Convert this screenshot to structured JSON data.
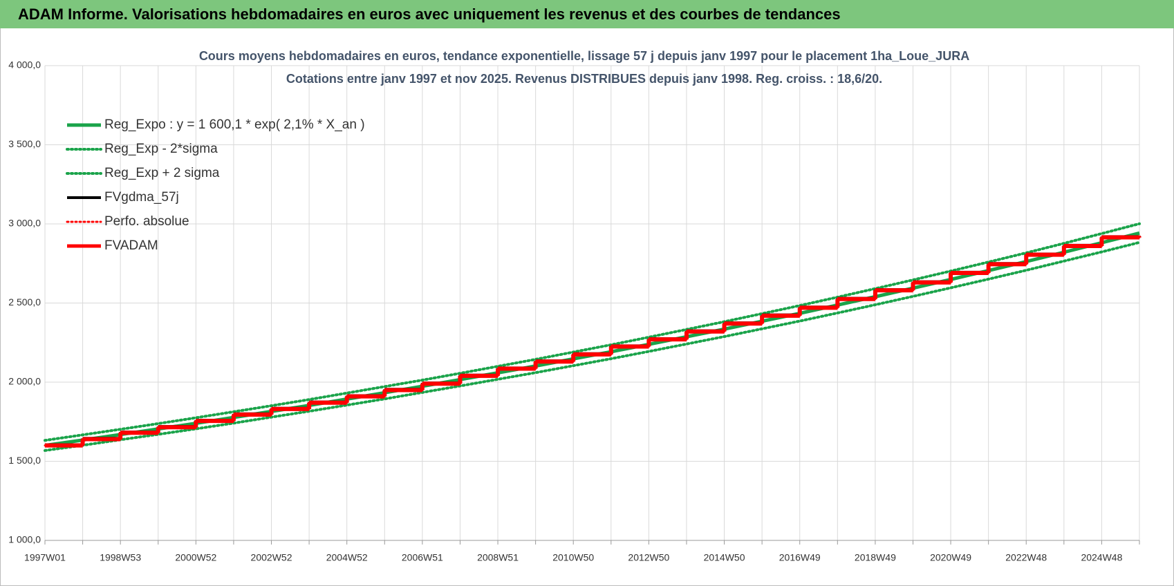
{
  "header": {
    "title": "ADAM Informe. Valorisations hebdomadaires en euros avec uniquement les revenus et des courbes de tendances"
  },
  "chart_data": {
    "type": "line",
    "title": "Cours moyens  hebdomadaires en euros, tendance exponentielle, lissage 57 j depuis janv 1997 pour le placement 1ha_Loue_JURA",
    "subtitle": "Cotations entre janv 1997 et nov 2025. Revenus  DISTRIBUES depuis janv 1998.  Reg. croiss. : 18,6/20.",
    "categories": [
      "1997W01",
      null,
      "1998W53",
      null,
      "2000W52",
      null,
      "2002W52",
      null,
      "2004W52",
      null,
      "2006W51",
      null,
      "2008W51",
      null,
      "2010W50",
      null,
      "2012W50",
      null,
      "2014W50",
      null,
      "2016W49",
      null,
      "2018W49",
      null,
      "2020W49",
      null,
      "2022W48",
      null,
      "2024W48",
      null
    ],
    "ylim": [
      1000,
      4000
    ],
    "yticks": [
      {
        "value": 1000,
        "label": "1 000,0"
      },
      {
        "value": 1500,
        "label": "1 500,0"
      },
      {
        "value": 2000,
        "label": "2 000,0"
      },
      {
        "value": 2500,
        "label": "2 500,0"
      },
      {
        "value": 3000,
        "label": "3 000,0"
      },
      {
        "value": 3500,
        "label": "3 500,0"
      },
      {
        "value": 4000,
        "label": "4 000,0"
      }
    ],
    "grid": true,
    "legend": "upper-left",
    "series": [
      {
        "name": "Reg_Expo : y = 1 600,1 * exp( 2,1% *  X_an )",
        "color": "#1aa34a",
        "dash": "solid",
        "width": 5,
        "step": false,
        "values": [
          1600,
          1634,
          1669,
          1704,
          1740,
          1777,
          1815,
          1853,
          1893,
          1933,
          1974,
          2016,
          2059,
          2102,
          2147,
          2192,
          2239,
          2287,
          2335,
          2385,
          2435,
          2487,
          2540,
          2594,
          2649,
          2705,
          2762,
          2821,
          2881,
          2942
        ]
      },
      {
        "name": "Reg_Exp - 2*sigma",
        "color": "#1aa34a",
        "dash": "dotted",
        "width": 4,
        "step": false,
        "values": [
          1568,
          1601,
          1636,
          1670,
          1705,
          1741,
          1779,
          1816,
          1855,
          1894,
          1935,
          1976,
          2018,
          2060,
          2104,
          2148,
          2194,
          2241,
          2288,
          2337,
          2386,
          2437,
          2489,
          2542,
          2596,
          2651,
          2707,
          2765,
          2823,
          2883
        ]
      },
      {
        "name": "Reg_Exp + 2 sigma",
        "color": "#1aa34a",
        "dash": "dotted",
        "width": 4,
        "step": false,
        "values": [
          1632,
          1667,
          1702,
          1738,
          1775,
          1813,
          1851,
          1890,
          1931,
          1972,
          2013,
          2056,
          2100,
          2144,
          2190,
          2236,
          2284,
          2333,
          2382,
          2433,
          2484,
          2537,
          2591,
          2646,
          2702,
          2759,
          2817,
          2877,
          2939,
          3001
        ]
      },
      {
        "name": "FVgdma_57j",
        "color": "#000000",
        "dash": "solid",
        "width": 4,
        "step": true,
        "values": [
          1605,
          1645,
          1685,
          1720,
          1760,
          1800,
          1835,
          1875,
          1915,
          1955,
          1995,
          2045,
          2090,
          2135,
          2180,
          2230,
          2275,
          2325,
          2375,
          2425,
          2475,
          2530,
          2585,
          2635,
          2695,
          2750,
          2810,
          2865,
          2920,
          2925
        ]
      },
      {
        "name": "Perfo. absolue",
        "color": "#ff0000",
        "dash": "dotted",
        "width": 3,
        "step": true,
        "values": [
          1600,
          1640,
          1680,
          1715,
          1755,
          1795,
          1830,
          1870,
          1910,
          1950,
          1990,
          2040,
          2085,
          2130,
          2175,
          2225,
          2270,
          2320,
          2370,
          2420,
          2470,
          2525,
          2580,
          2630,
          2690,
          2745,
          2805,
          2860,
          2915,
          2920
        ]
      },
      {
        "name": "FVADAM",
        "color": "#ff0000",
        "dash": "solid",
        "width": 6,
        "step": true,
        "values": [
          1600,
          1640,
          1680,
          1715,
          1755,
          1795,
          1830,
          1870,
          1910,
          1950,
          1990,
          2040,
          2085,
          2130,
          2175,
          2225,
          2270,
          2320,
          2370,
          2420,
          2470,
          2525,
          2580,
          2630,
          2690,
          2745,
          2805,
          2860,
          2915,
          2920
        ]
      }
    ]
  }
}
